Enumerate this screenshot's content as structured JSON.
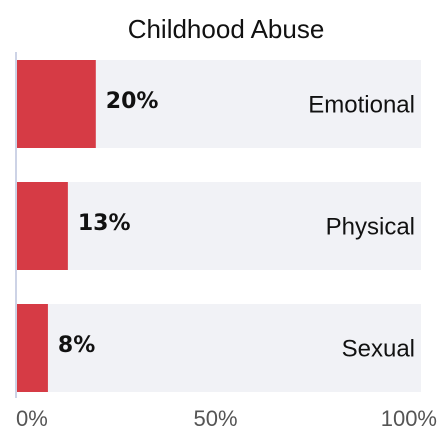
{
  "chart_data": {
    "type": "bar",
    "orientation": "horizontal",
    "title": "Childhood Abuse",
    "categories": [
      "Emotional",
      "Physical",
      "Sexual"
    ],
    "values": [
      20,
      13,
      8
    ],
    "value_labels": [
      "20%",
      "13%",
      "8%"
    ],
    "xlim": [
      0,
      100
    ],
    "x_ticks": [
      0,
      50,
      100
    ],
    "x_tick_labels": [
      "0%",
      "50%",
      "100%"
    ],
    "xlabel": "",
    "ylabel": "",
    "grid": false,
    "legend": "none"
  },
  "colors": {
    "bar": "#d63b45",
    "track": "#f1f2f6",
    "axis": "#cdd3e6",
    "text": "#111111",
    "tick_text": "#555555"
  }
}
